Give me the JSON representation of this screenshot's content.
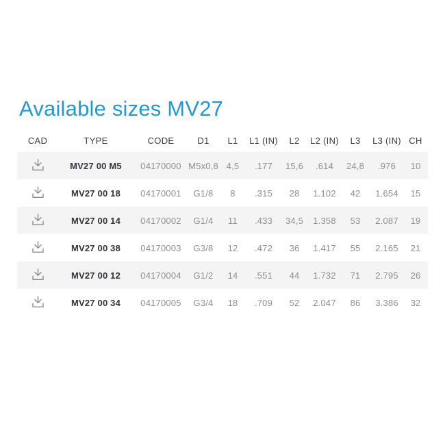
{
  "title": {
    "text": "Available sizes MV27"
  },
  "colors": {
    "accent_blue": "#2498d5",
    "header_text": "#3c3c47",
    "type_text": "#33333d",
    "data_text": "#8f8f8f",
    "row_stripe": "#f4f4f4",
    "icon_gray": "#8a8a8a"
  },
  "table": {
    "columns": [
      "CAD",
      "TYPE",
      "CODE",
      "D1",
      "L1",
      "L1 (IN)",
      "L2",
      "L2 (IN)",
      "L3",
      "L3 (IN)",
      "CH"
    ],
    "cad_icon": "download-icon",
    "rows": [
      {
        "cells": [
          "MV27 00 M5",
          "04170000",
          "M5x0,8",
          "4,5",
          ".177",
          "15,6",
          ".614",
          "24,8",
          ".976",
          "10"
        ]
      },
      {
        "cells": [
          "MV27 00 18",
          "04170001",
          "G1/8",
          "8",
          ".315",
          "28",
          "1.102",
          "42",
          "1.654",
          "15"
        ]
      },
      {
        "cells": [
          "MV27 00 14",
          "04170002",
          "G1/4",
          "11",
          ".433",
          "34,5",
          "1.358",
          "53",
          "2.087",
          "19"
        ]
      },
      {
        "cells": [
          "MV27 00 38",
          "04170003",
          "G3/8",
          "12",
          ".472",
          "36",
          "1.417",
          "55",
          "2.165",
          "21"
        ]
      },
      {
        "cells": [
          "MV27 00 12",
          "04170004",
          "G1/2",
          "14",
          ".551",
          "44",
          "1.732",
          "71",
          "2.795",
          "26"
        ]
      },
      {
        "cells": [
          "MV27 00 34",
          "04170005",
          "G3/4",
          "18",
          ".709",
          "52",
          "2.047",
          "86",
          "3.386",
          "32"
        ]
      }
    ]
  }
}
